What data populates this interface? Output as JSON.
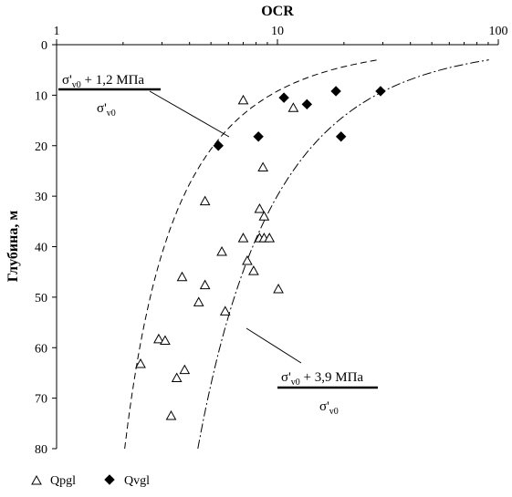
{
  "chart_data": {
    "type": "scatter",
    "xlabel": "OCR",
    "ylabel": "Глубина, м",
    "x_scale": "log",
    "xlim": [
      1,
      100
    ],
    "ylim": [
      0,
      80
    ],
    "y_inverted": true,
    "x_ticks": [
      "1",
      "10",
      "100"
    ],
    "y_ticks": [
      "0",
      "10",
      "20",
      "30",
      "40",
      "50",
      "60",
      "70",
      "80"
    ],
    "grid": false,
    "legend_position": "bottom-left",
    "series": [
      {
        "name": "Qpgl",
        "marker": "open-triangle",
        "color": "#000000",
        "points": [
          {
            "x": 7.0,
            "y": 11.0
          },
          {
            "x": 11.8,
            "y": 12.5
          },
          {
            "x": 8.6,
            "y": 24.3
          },
          {
            "x": 4.7,
            "y": 31.0
          },
          {
            "x": 8.3,
            "y": 32.5
          },
          {
            "x": 8.7,
            "y": 34.0
          },
          {
            "x": 7.0,
            "y": 38.3
          },
          {
            "x": 8.3,
            "y": 38.3
          },
          {
            "x": 8.7,
            "y": 38.3
          },
          {
            "x": 9.2,
            "y": 38.3
          },
          {
            "x": 5.6,
            "y": 41.0
          },
          {
            "x": 7.3,
            "y": 42.8
          },
          {
            "x": 7.8,
            "y": 44.8
          },
          {
            "x": 3.7,
            "y": 46.0
          },
          {
            "x": 4.7,
            "y": 47.6
          },
          {
            "x": 10.1,
            "y": 48.4
          },
          {
            "x": 4.4,
            "y": 51.0
          },
          {
            "x": 5.8,
            "y": 52.8
          },
          {
            "x": 2.9,
            "y": 58.3
          },
          {
            "x": 3.1,
            "y": 58.6
          },
          {
            "x": 2.4,
            "y": 63.2
          },
          {
            "x": 3.8,
            "y": 64.4
          },
          {
            "x": 3.5,
            "y": 66.0
          },
          {
            "x": 3.3,
            "y": 73.5
          }
        ]
      },
      {
        "name": "Qvgl",
        "marker": "filled-diamond",
        "color": "#000000",
        "points": [
          {
            "x": 10.7,
            "y": 10.5
          },
          {
            "x": 13.6,
            "y": 11.8
          },
          {
            "x": 18.4,
            "y": 9.2
          },
          {
            "x": 29.3,
            "y": 9.2
          },
          {
            "x": 8.2,
            "y": 18.2
          },
          {
            "x": 19.4,
            "y": 18.2
          },
          {
            "x": 5.4,
            "y": 20.0
          }
        ]
      }
    ],
    "curves": [
      {
        "label_numerator": "σ'v0 + 1,2 МПа",
        "label_denominator": "σ'v0",
        "line_style": "dashed",
        "stress_add_MPa": 1.2
      },
      {
        "label_numerator": "σ'v0 + 3,9 МПа",
        "label_denominator": "σ'v0",
        "line_style": "dash-dot",
        "stress_add_MPa": 3.9
      }
    ]
  },
  "annotations": {
    "upper": {
      "sigma": "σ'",
      "sub": "v0",
      "rest": " + 1,2 МПа",
      "den_sigma": "σ'",
      "den_sub": "v0"
    },
    "lower": {
      "sigma": "σ'",
      "sub": "v0",
      "rest": " + 3,9 МПа",
      "den_sigma": "σ'",
      "den_sub": "v0"
    }
  },
  "legend": {
    "items": [
      {
        "label": "Qpgl",
        "marker": "open-triangle"
      },
      {
        "label": "Qvgl",
        "marker": "filled-diamond"
      }
    ]
  }
}
